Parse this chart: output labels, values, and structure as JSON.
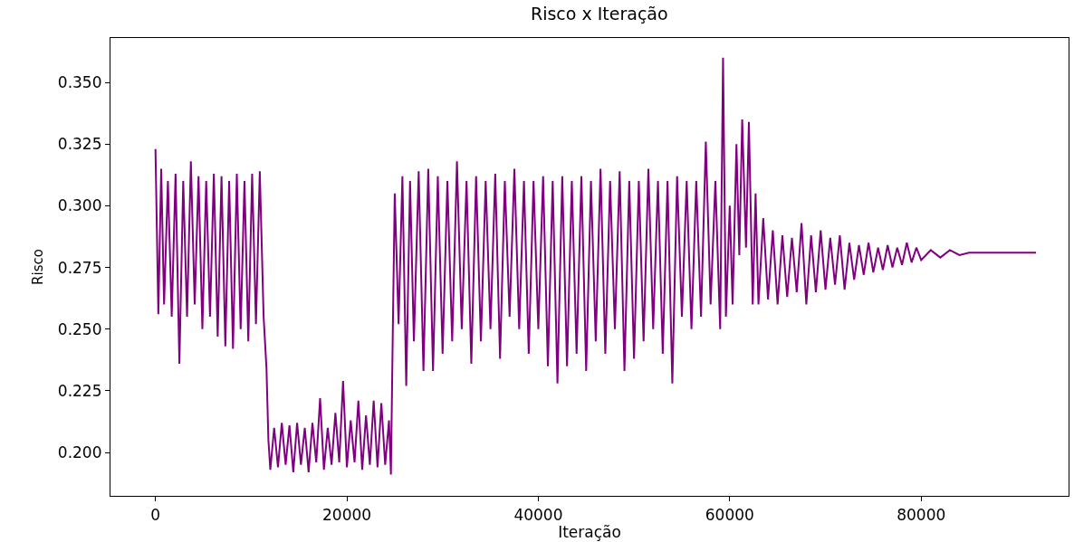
{
  "chart_data": {
    "type": "line",
    "title": "Risco x Iteração",
    "xlabel": "Iteração",
    "ylabel": "Risco",
    "x": [
      0,
      300,
      600,
      900,
      1300,
      1700,
      2100,
      2500,
      2900,
      3300,
      3700,
      4100,
      4500,
      4900,
      5300,
      5700,
      6100,
      6500,
      6900,
      7300,
      7700,
      8100,
      8500,
      8900,
      9300,
      9700,
      10100,
      10500,
      10900,
      11300,
      11600,
      11800,
      12000,
      12400,
      12800,
      13200,
      13600,
      14000,
      14400,
      14800,
      15200,
      15600,
      16000,
      16400,
      16800,
      17200,
      17600,
      18000,
      18400,
      18800,
      19200,
      19600,
      20000,
      20400,
      20800,
      21200,
      21600,
      22000,
      22400,
      22800,
      23200,
      23600,
      24000,
      24400,
      24600,
      24800,
      25000,
      25400,
      25800,
      26200,
      26600,
      27000,
      27500,
      28000,
      28500,
      29000,
      29500,
      30000,
      30500,
      31000,
      31500,
      32000,
      32500,
      33000,
      33500,
      34000,
      34500,
      35000,
      35500,
      36000,
      36500,
      37000,
      37500,
      38000,
      38500,
      39000,
      39500,
      40000,
      40500,
      41000,
      41500,
      42000,
      42500,
      43000,
      43500,
      44000,
      44500,
      45000,
      45500,
      46000,
      46500,
      47000,
      47500,
      48000,
      48500,
      49000,
      49500,
      50000,
      50500,
      51000,
      51500,
      52000,
      52500,
      53000,
      53500,
      54000,
      54500,
      55000,
      55500,
      56000,
      56500,
      57000,
      57500,
      58000,
      58500,
      59000,
      59300,
      59600,
      60000,
      60300,
      60700,
      61000,
      61300,
      61700,
      62000,
      62400,
      62700,
      63000,
      63500,
      64000,
      64500,
      65000,
      65500,
      66000,
      66500,
      67000,
      67500,
      68000,
      68500,
      69000,
      69500,
      70000,
      70500,
      71000,
      71500,
      72000,
      72500,
      73000,
      73500,
      74000,
      74500,
      75000,
      75500,
      76000,
      76500,
      77000,
      77500,
      78000,
      78500,
      79000,
      79500,
      80000,
      81000,
      82000,
      83000,
      84000,
      85000,
      92000
    ],
    "series": [
      {
        "color": "#800080",
        "values": [
          0.323,
          0.256,
          0.315,
          0.26,
          0.31,
          0.255,
          0.313,
          0.236,
          0.31,
          0.255,
          0.318,
          0.26,
          0.312,
          0.25,
          0.31,
          0.255,
          0.313,
          0.247,
          0.312,
          0.243,
          0.31,
          0.242,
          0.313,
          0.25,
          0.31,
          0.245,
          0.313,
          0.252,
          0.314,
          0.255,
          0.234,
          0.205,
          0.193,
          0.21,
          0.194,
          0.212,
          0.195,
          0.211,
          0.192,
          0.212,
          0.195,
          0.21,
          0.192,
          0.212,
          0.196,
          0.222,
          0.193,
          0.21,
          0.195,
          0.216,
          0.196,
          0.229,
          0.194,
          0.213,
          0.196,
          0.221,
          0.193,
          0.215,
          0.195,
          0.221,
          0.194,
          0.22,
          0.195,
          0.213,
          0.191,
          0.25,
          0.305,
          0.252,
          0.312,
          0.227,
          0.31,
          0.245,
          0.314,
          0.233,
          0.315,
          0.233,
          0.312,
          0.24,
          0.31,
          0.245,
          0.318,
          0.25,
          0.31,
          0.236,
          0.312,
          0.245,
          0.31,
          0.25,
          0.313,
          0.238,
          0.31,
          0.255,
          0.315,
          0.25,
          0.31,
          0.24,
          0.31,
          0.25,
          0.312,
          0.235,
          0.31,
          0.228,
          0.312,
          0.235,
          0.31,
          0.24,
          0.312,
          0.233,
          0.31,
          0.245,
          0.315,
          0.24,
          0.31,
          0.25,
          0.314,
          0.233,
          0.31,
          0.238,
          0.31,
          0.245,
          0.315,
          0.25,
          0.31,
          0.24,
          0.31,
          0.228,
          0.312,
          0.255,
          0.31,
          0.25,
          0.31,
          0.255,
          0.326,
          0.26,
          0.31,
          0.25,
          0.36,
          0.255,
          0.3,
          0.26,
          0.325,
          0.28,
          0.335,
          0.283,
          0.334,
          0.26,
          0.305,
          0.26,
          0.295,
          0.262,
          0.29,
          0.26,
          0.288,
          0.263,
          0.287,
          0.265,
          0.293,
          0.26,
          0.288,
          0.265,
          0.29,
          0.266,
          0.287,
          0.268,
          0.288,
          0.266,
          0.285,
          0.27,
          0.284,
          0.272,
          0.285,
          0.273,
          0.283,
          0.274,
          0.284,
          0.275,
          0.283,
          0.276,
          0.285,
          0.277,
          0.283,
          0.278,
          0.282,
          0.279,
          0.282,
          0.28,
          0.281,
          0.281
        ]
      }
    ],
    "xlim": [
      -4700,
      95400
    ],
    "xticks": [
      0,
      20000,
      40000,
      60000,
      80000
    ],
    "ylim": [
      0.1824,
      0.368
    ],
    "yticks": [
      {
        "value": 0.2,
        "label": "0.200"
      },
      {
        "value": 0.225,
        "label": "0.225"
      },
      {
        "value": 0.25,
        "label": "0.250"
      },
      {
        "value": 0.275,
        "label": "0.275"
      },
      {
        "value": 0.3,
        "label": "0.300"
      },
      {
        "value": 0.325,
        "label": "0.325"
      },
      {
        "value": 0.35,
        "label": "0.350"
      }
    ],
    "grid": false,
    "marker": "none",
    "line_style": "solid"
  }
}
